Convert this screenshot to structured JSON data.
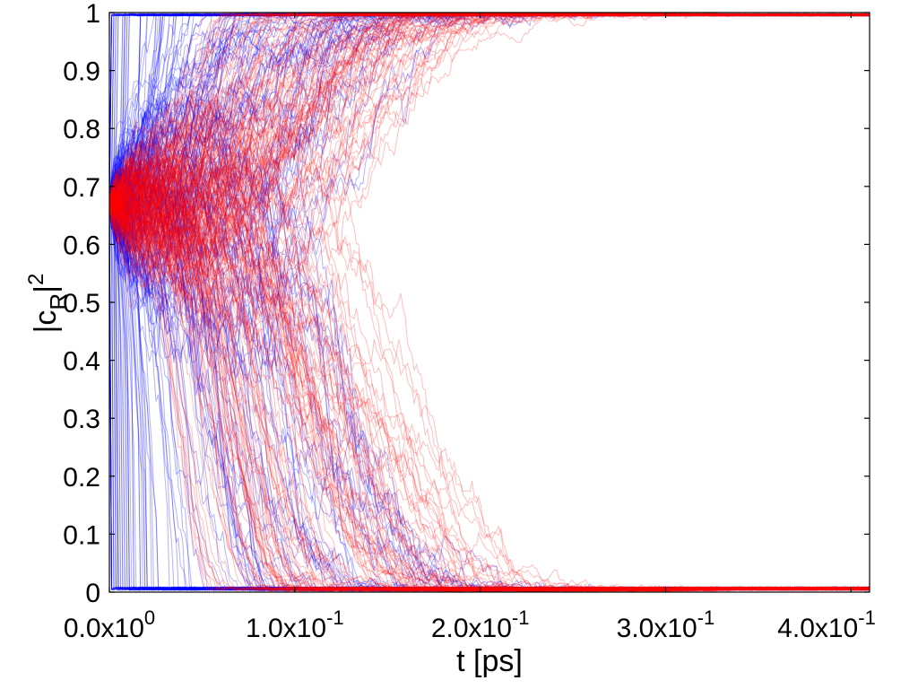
{
  "chart_data": {
    "type": "line",
    "title": "",
    "xlabel": "t [ps]",
    "ylabel_base": "|c",
    "ylabel_sub": "R",
    "ylabel_sup": "2",
    "xlim": [
      0,
      0.41
    ],
    "ylim": [
      0,
      1
    ],
    "x_ticks": [
      {
        "value": 0.0,
        "mantissa": "0.0x10",
        "exponent": "0"
      },
      {
        "value": 0.1,
        "mantissa": "1.0x10",
        "exponent": "-1"
      },
      {
        "value": 0.2,
        "mantissa": "2.0x10",
        "exponent": "-1"
      },
      {
        "value": 0.3,
        "mantissa": "3.0x10",
        "exponent": "-1"
      },
      {
        "value": 0.4,
        "mantissa": "4.0x10",
        "exponent": "-1"
      }
    ],
    "y_ticks": [
      {
        "value": 0,
        "label": "0"
      },
      {
        "value": 0.1,
        "label": "0.1"
      },
      {
        "value": 0.2,
        "label": "0.2"
      },
      {
        "value": 0.3,
        "label": "0.3"
      },
      {
        "value": 0.4,
        "label": "0.4"
      },
      {
        "value": 0.5,
        "label": "0.5"
      },
      {
        "value": 0.6,
        "label": "0.6"
      },
      {
        "value": 0.7,
        "label": "0.7"
      },
      {
        "value": 0.8,
        "label": "0.8"
      },
      {
        "value": 0.9,
        "label": "0.9"
      },
      {
        "value": 1,
        "label": "1"
      }
    ],
    "grid": false,
    "legend": "none",
    "series": [
      {
        "color": "#0000ff",
        "opacity": 0.3,
        "trajectory_count": 220,
        "initial_value": 0.67,
        "end_time_range": [
          0.0,
          0.27
        ],
        "final_values": [
          0,
          1
        ]
      },
      {
        "color": "#ff0000",
        "opacity": 0.25,
        "trajectory_count": 220,
        "initial_value": 0.67,
        "end_time_range": [
          0.05,
          0.34
        ],
        "final_values": [
          0,
          1
        ]
      }
    ]
  }
}
